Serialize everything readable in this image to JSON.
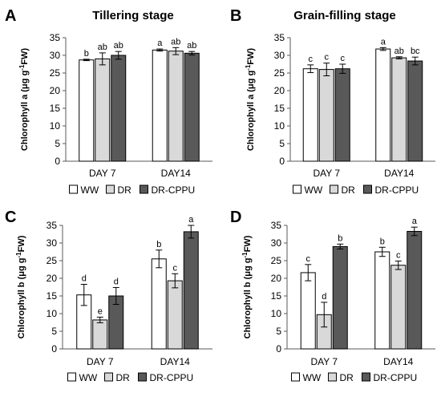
{
  "colors": {
    "WW": "#ffffff",
    "DR": "#d9d9d9",
    "DR-CPPU": "#595959",
    "outline": "#000000"
  },
  "chart_data": [
    {
      "panel": "A",
      "type": "bar",
      "title": "Tillering stage",
      "ylabel_main": "Chlorophyll a (μg g",
      "ylabel_sup": "-1",
      "ylabel_end": "FW)",
      "ylim": [
        0,
        35
      ],
      "yticks": [
        0,
        5,
        10,
        15,
        20,
        25,
        30,
        35
      ],
      "categories": [
        "DAY 7",
        "DAY14"
      ],
      "legend": [
        "WW",
        "DR",
        "DR-CPPU"
      ],
      "series": [
        {
          "name": "WW",
          "values": [
            28.7,
            31.5
          ],
          "errors": [
            0.2,
            0.3
          ],
          "letters": [
            "b",
            "a"
          ]
        },
        {
          "name": "DR",
          "values": [
            29.0,
            31.2
          ],
          "errors": [
            1.7,
            1.0
          ],
          "letters": [
            "ab",
            "ab"
          ]
        },
        {
          "name": "DR-CPPU",
          "values": [
            30.0,
            30.6
          ],
          "errors": [
            1.1,
            0.5
          ],
          "letters": [
            "ab",
            "ab"
          ]
        }
      ]
    },
    {
      "panel": "B",
      "type": "bar",
      "title": "Grain-filling stage",
      "ylabel_main": "Chlorophyll a (μg g",
      "ylabel_sup": "-1",
      "ylabel_end": "FW)",
      "ylim": [
        0,
        35
      ],
      "yticks": [
        0,
        5,
        10,
        15,
        20,
        25,
        30,
        35
      ],
      "categories": [
        "DAY 7",
        "DAY14"
      ],
      "legend": [
        "WW",
        "DR",
        "DR-CPPU"
      ],
      "series": [
        {
          "name": "WW",
          "values": [
            26.2,
            31.8
          ],
          "errors": [
            1.1,
            0.4
          ],
          "letters": [
            "c",
            "a"
          ]
        },
        {
          "name": "DR",
          "values": [
            26.0,
            29.3
          ],
          "errors": [
            1.8,
            0.3
          ],
          "letters": [
            "c",
            "ab"
          ]
        },
        {
          "name": "DR-CPPU",
          "values": [
            26.2,
            28.4
          ],
          "errors": [
            1.3,
            1.1
          ],
          "letters": [
            "c",
            "bc"
          ]
        }
      ]
    },
    {
      "panel": "C",
      "type": "bar",
      "title": "",
      "ylabel_main": "Chlorophyll b (μg g",
      "ylabel_sup": "-1",
      "ylabel_end": "FW)",
      "ylim": [
        0,
        35
      ],
      "yticks": [
        0,
        5,
        10,
        15,
        20,
        25,
        30,
        35
      ],
      "categories": [
        "DAY 7",
        "DAY14"
      ],
      "legend": [
        "WW",
        "DR",
        "DR-CPPU"
      ],
      "series": [
        {
          "name": "WW",
          "values": [
            15.3,
            25.5
          ],
          "errors": [
            3.0,
            2.5
          ],
          "letters": [
            "d",
            "b"
          ]
        },
        {
          "name": "DR",
          "values": [
            8.2,
            19.3
          ],
          "errors": [
            0.8,
            2.0
          ],
          "letters": [
            "e",
            "c"
          ]
        },
        {
          "name": "DR-CPPU",
          "values": [
            15.0,
            33.2
          ],
          "errors": [
            2.4,
            1.8
          ],
          "letters": [
            "d",
            "a"
          ]
        }
      ]
    },
    {
      "panel": "D",
      "type": "bar",
      "title": "",
      "ylabel_main": "Chlorophyll b (μg g",
      "ylabel_sup": "-1",
      "ylabel_end": "FW)",
      "ylim": [
        0,
        35
      ],
      "yticks": [
        0,
        5,
        10,
        15,
        20,
        25,
        30,
        35
      ],
      "categories": [
        "DAY 7",
        "DAY14"
      ],
      "legend": [
        "WW",
        "DR",
        "DR-CPPU"
      ],
      "series": [
        {
          "name": "WW",
          "values": [
            21.6,
            27.5
          ],
          "errors": [
            2.3,
            1.3
          ],
          "letters": [
            "c",
            "b"
          ]
        },
        {
          "name": "DR",
          "values": [
            9.7,
            23.7
          ],
          "errors": [
            3.5,
            1.2
          ],
          "letters": [
            "d",
            "c"
          ]
        },
        {
          "name": "DR-CPPU",
          "values": [
            29.0,
            33.3
          ],
          "errors": [
            0.7,
            1.2
          ],
          "letters": [
            "b",
            "a"
          ]
        }
      ]
    }
  ]
}
